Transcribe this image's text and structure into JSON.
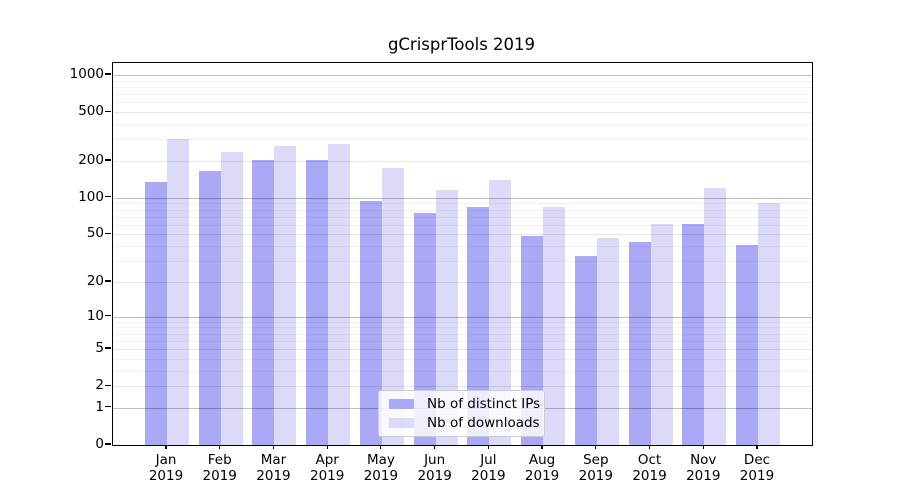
{
  "chart_data": {
    "type": "bar",
    "title": "gCrisprTools 2019",
    "categories": [
      "Jan",
      "Feb",
      "Mar",
      "Apr",
      "May",
      "Jun",
      "Jul",
      "Aug",
      "Sep",
      "Oct",
      "Nov",
      "Dec"
    ],
    "x_year_label": "2019",
    "series": [
      {
        "name": "Nb of distinct IPs",
        "color": "#a9a9f5",
        "values": [
          135,
          165,
          205,
          205,
          95,
          75,
          84,
          49,
          33,
          43,
          61,
          41
        ]
      },
      {
        "name": "Nb of downloads",
        "color": "#dbdbf9",
        "values": [
          300,
          235,
          263,
          273,
          175,
          117,
          140,
          84,
          47,
          61,
          120,
          90
        ]
      }
    ],
    "yscale": "log10(value+1)",
    "y_ticks": [
      0,
      1,
      2,
      5,
      10,
      20,
      50,
      100,
      200,
      500,
      1000
    ],
    "ylim": [
      0,
      1250
    ],
    "grid": true,
    "legend_position": "lower center"
  }
}
